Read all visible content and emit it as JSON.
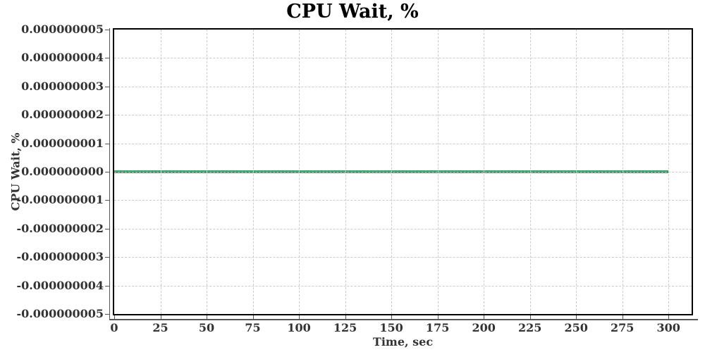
{
  "title": "CPU Wait, %",
  "colors": {
    "series": "#2EA163",
    "grid": "#cccccc",
    "axis": "#555555",
    "tick_text": "#333333",
    "title_text": "#000000",
    "plot_border": "#000000",
    "background": "#ffffff"
  },
  "chart_data": {
    "type": "line",
    "title": "CPU Wait, %",
    "xlabel": "Time, sec",
    "ylabel": "CPU Wait, %",
    "xlim": [
      0,
      312.5
    ],
    "ylim": [
      -5e-09,
      5e-09
    ],
    "grid": true,
    "legend": "none",
    "xticks": [
      0,
      25,
      50,
      75,
      100,
      125,
      150,
      175,
      200,
      225,
      250,
      275,
      300
    ],
    "xtick_labels": [
      "0",
      "25",
      "50",
      "75",
      "100",
      "125",
      "150",
      "175",
      "200",
      "225",
      "250",
      "275",
      "300"
    ],
    "ytick_values": [
      5e-09,
      4e-09,
      3e-09,
      2e-09,
      1e-09,
      0,
      -1e-09,
      -2e-09,
      -3e-09,
      -4e-09,
      -5e-09
    ],
    "ytick_labels": [
      "0.000000005",
      "0.000000004",
      "0.000000003",
      "0.000000002",
      "0.000000001",
      "0.000000000",
      "-0.000000001",
      "-0.000000002",
      "-0.000000003",
      "-0.000000004",
      "-0.000000005"
    ],
    "series": [
      {
        "name": "CPU Wait",
        "x": [
          0,
          300
        ],
        "y": [
          0,
          0
        ],
        "color": "#2EA163",
        "linewidth": 4
      }
    ]
  }
}
